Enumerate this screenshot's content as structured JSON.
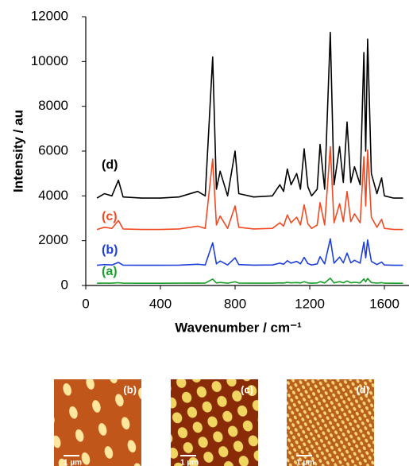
{
  "chart_data": {
    "type": "line",
    "y_label": "Intensity / au",
    "x_label": "Wavenumber / cm⁻¹",
    "xlim": [
      0,
      1730
    ],
    "xticks": [
      0,
      400,
      800,
      1200,
      1600
    ],
    "ylim": [
      0,
      12000
    ],
    "yticks": [
      0,
      2000,
      4000,
      6000,
      8000,
      10000,
      12000
    ],
    "grid": false,
    "x": [
      60,
      100,
      140,
      175,
      200,
      300,
      400,
      500,
      600,
      640,
      680,
      700,
      720,
      760,
      800,
      820,
      900,
      1000,
      1040,
      1060,
      1080,
      1100,
      1130,
      1150,
      1170,
      1190,
      1210,
      1240,
      1255,
      1280,
      1310,
      1330,
      1360,
      1380,
      1400,
      1420,
      1440,
      1470,
      1490,
      1500,
      1510,
      1530,
      1560,
      1585,
      1600,
      1650,
      1700
    ],
    "series": [
      {
        "name": "(a)",
        "color": "#1a9e2a",
        "values": [
          100,
          106,
          103,
          124,
          102,
          100,
          100,
          102,
          109,
          103,
          289,
          112,
          136,
          103,
          163,
          106,
          102,
          103,
          118,
          109,
          139,
          118,
          133,
          112,
          166,
          115,
          103,
          112,
          172,
          112,
          322,
          118,
          169,
          121,
          202,
          121,
          142,
          118,
          295,
          163,
          313,
          133,
          106,
          127,
          103,
          100,
          100
        ]
      },
      {
        "name": "(b)",
        "color": "#1f3fd9",
        "values": [
          900,
          932,
          916,
          1028,
          908,
          900,
          900,
          908,
          948,
          916,
          1908,
          964,
          1092,
          916,
          1236,
          932,
          908,
          916,
          996,
          948,
          1108,
          996,
          1076,
          964,
          1252,
          980,
          916,
          964,
          1284,
          964,
          2084,
          996,
          1268,
          1012,
          1444,
          1012,
          1124,
          996,
          1940,
          1236,
          2036,
          1076,
          932,
          1044,
          916,
          900,
          900
        ]
      },
      {
        "name": "(c)",
        "color": "#f04a23",
        "values": [
          2500,
          2600,
          2550,
          2900,
          2525,
          2500,
          2500,
          2525,
          2650,
          2550,
          5650,
          2700,
          3100,
          2550,
          3550,
          2600,
          2525,
          2550,
          2800,
          2650,
          3150,
          2800,
          3050,
          2700,
          3600,
          2750,
          2550,
          2700,
          3700,
          2700,
          6200,
          2800,
          3650,
          2850,
          4200,
          2850,
          3200,
          2800,
          5750,
          3550,
          6050,
          3050,
          2600,
          2950,
          2550,
          2500,
          2500
        ]
      },
      {
        "name": "(d)",
        "color": "#000000",
        "values": [
          3900,
          4100,
          4000,
          4700,
          3950,
          3900,
          3900,
          3950,
          4200,
          4000,
          10200,
          4300,
          5100,
          4000,
          6000,
          4100,
          3950,
          4000,
          4500,
          4200,
          5200,
          4500,
          5000,
          4300,
          6100,
          4400,
          4000,
          4300,
          6300,
          4300,
          11300,
          4500,
          6200,
          4600,
          7300,
          4600,
          5300,
          4500,
          10400,
          6000,
          11000,
          5000,
          4100,
          4800,
          4000,
          3900,
          3900
        ]
      }
    ]
  },
  "images": [
    {
      "label": "(b)",
      "scale": "1 µm"
    },
    {
      "label": "(c)",
      "scale": "1 µm"
    },
    {
      "label": "(d)",
      "scale": "1 µm"
    }
  ]
}
